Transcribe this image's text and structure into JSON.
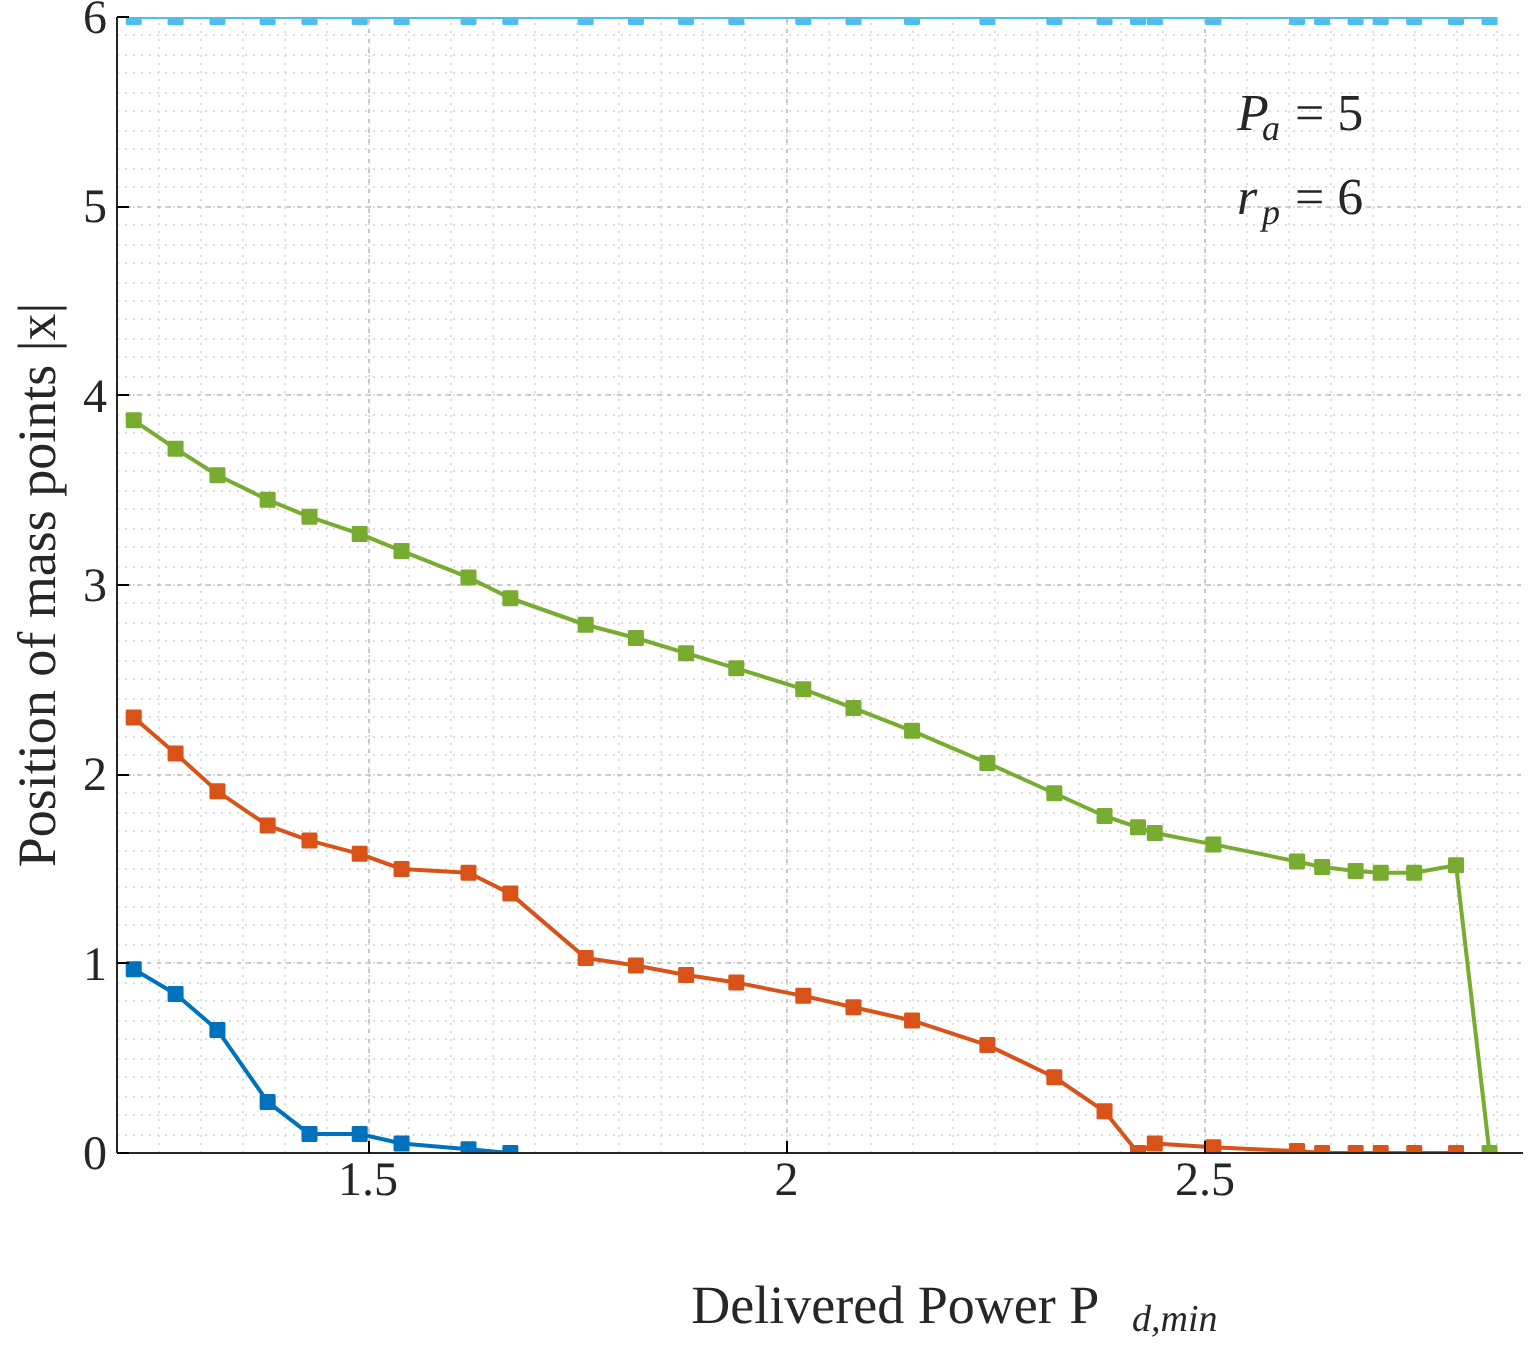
{
  "chart_data": {
    "type": "line",
    "xlabel": "Delivered Power P$_{d,min}$",
    "ylabel": "Position of mass points |x|",
    "xlim": [
      1.2,
      2.88
    ],
    "ylim": [
      0,
      6
    ],
    "xticks": [
      1.5,
      2,
      2.5
    ],
    "yticks": [
      0,
      1,
      2,
      3,
      4,
      5,
      6
    ],
    "grid": true,
    "marker": "square",
    "line_style": "solid",
    "annotations": [
      "P$_{a}$ = 5",
      "r$_{p}$ = 6"
    ],
    "series": [
      {
        "color": "#0072bd",
        "x": [
          1.22,
          1.27,
          1.32,
          1.38,
          1.43,
          1.49,
          1.54,
          1.62,
          1.67
        ],
        "values": [
          0.97,
          0.84,
          0.65,
          0.27,
          0.1,
          0.1,
          0.05,
          0.02,
          0
        ]
      },
      {
        "color": "#d95319",
        "x": [
          1.22,
          1.27,
          1.32,
          1.38,
          1.43,
          1.49,
          1.54,
          1.62,
          1.67,
          1.76,
          1.82,
          1.88,
          1.94,
          2.02,
          2.08,
          2.15,
          2.24,
          2.32,
          2.38,
          2.42,
          2.44,
          2.51,
          2.61,
          2.64,
          2.68,
          2.71,
          2.75,
          2.8
        ],
        "values": [
          2.3,
          2.11,
          1.91,
          1.73,
          1.65,
          1.58,
          1.5,
          1.48,
          1.37,
          1.03,
          0.99,
          0.94,
          0.9,
          0.83,
          0.77,
          0.7,
          0.57,
          0.4,
          0.22,
          0,
          0.05,
          0.03,
          0.01,
          0,
          0,
          0,
          0,
          0
        ]
      },
      {
        "color": "#77ac30",
        "x": [
          1.22,
          1.27,
          1.32,
          1.38,
          1.43,
          1.49,
          1.54,
          1.62,
          1.67,
          1.76,
          1.82,
          1.88,
          1.94,
          2.02,
          2.08,
          2.15,
          2.24,
          2.32,
          2.38,
          2.42,
          2.44,
          2.51,
          2.61,
          2.64,
          2.68,
          2.71,
          2.75,
          2.8,
          2.84
        ],
        "values": [
          3.87,
          3.72,
          3.58,
          3.45,
          3.36,
          3.27,
          3.18,
          3.04,
          2.93,
          2.79,
          2.72,
          2.64,
          2.56,
          2.45,
          2.35,
          2.23,
          2.06,
          1.9,
          1.78,
          1.72,
          1.69,
          1.63,
          1.54,
          1.51,
          1.49,
          1.48,
          1.48,
          1.52,
          0
        ]
      },
      {
        "color": "#4dbeee",
        "x": [
          1.22,
          1.27,
          1.32,
          1.38,
          1.43,
          1.49,
          1.54,
          1.62,
          1.67,
          1.76,
          1.82,
          1.88,
          1.94,
          2.02,
          2.08,
          2.15,
          2.24,
          2.32,
          2.38,
          2.42,
          2.44,
          2.51,
          2.61,
          2.64,
          2.68,
          2.71,
          2.75,
          2.8,
          2.84
        ],
        "values": [
          6,
          6,
          6,
          6,
          6,
          6,
          6,
          6,
          6,
          6,
          6,
          6,
          6,
          6,
          6,
          6,
          6,
          6,
          6,
          6,
          6,
          6,
          6,
          6,
          6,
          6,
          6,
          6,
          6
        ]
      }
    ]
  }
}
